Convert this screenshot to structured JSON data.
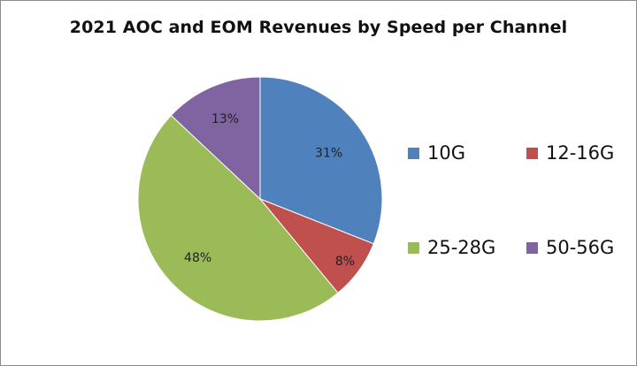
{
  "chart_data": {
    "type": "pie",
    "title": "2021 AOC and EOM Revenues by Speed per Channel",
    "categories": [
      "10G",
      "12-16G",
      "25-28G",
      "50-56G"
    ],
    "values": [
      31,
      8,
      48,
      13
    ],
    "data_labels": [
      "31%",
      "8%",
      "48%",
      "13%"
    ],
    "colors": [
      "#4f81bd",
      "#c0504d",
      "#9bbb59",
      "#8064a2"
    ],
    "start_angle": "12 o'clock",
    "direction": "clockwise",
    "legend": {
      "placement": "right",
      "entries": [
        "10G",
        "12-16G",
        "25-28G",
        "50-56G"
      ]
    }
  }
}
